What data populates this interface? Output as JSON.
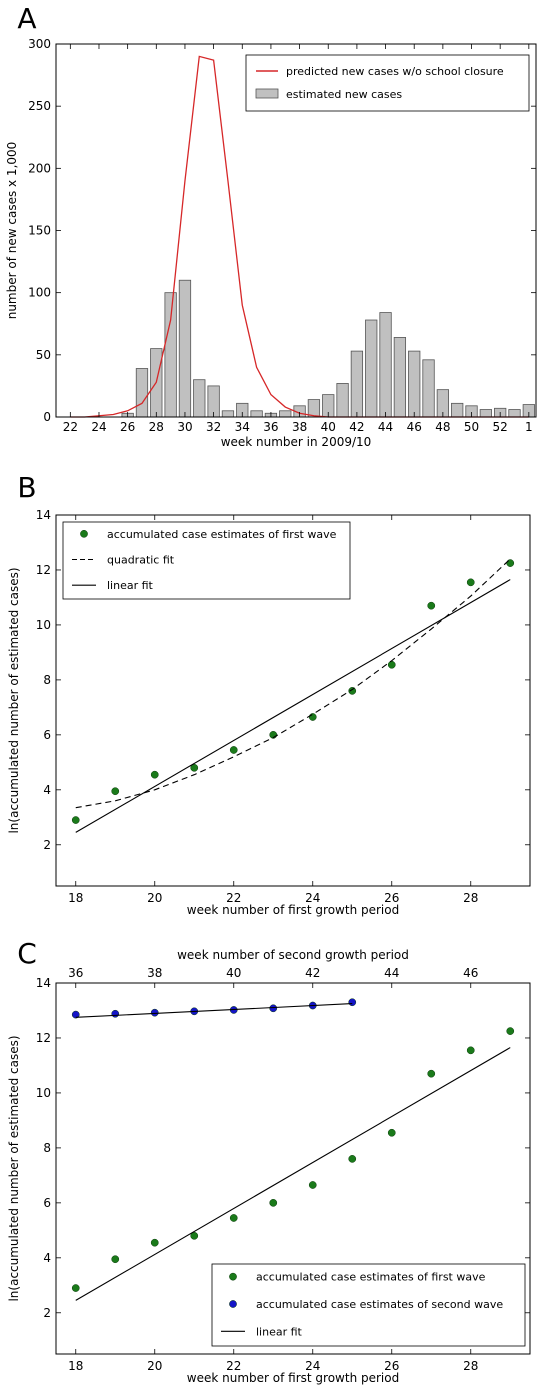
{
  "chart_data": [
    {
      "panel_label": "A",
      "type": "bar",
      "xlabel": "week number in 2009/10",
      "ylabel": "number of new cases x 1,000",
      "ylim": [
        0,
        300
      ],
      "yticks": [
        0,
        50,
        100,
        150,
        200,
        250,
        300
      ],
      "xtick_labels": [
        "22",
        "24",
        "26",
        "28",
        "30",
        "32",
        "34",
        "36",
        "38",
        "40",
        "42",
        "44",
        "46",
        "48",
        "50",
        "52",
        "1"
      ],
      "categories": [
        "22",
        "23",
        "24",
        "25",
        "26",
        "27",
        "28",
        "29",
        "30",
        "31",
        "32",
        "33",
        "34",
        "35",
        "36",
        "37",
        "38",
        "39",
        "40",
        "41",
        "42",
        "43",
        "44",
        "45",
        "46",
        "47",
        "48",
        "49",
        "50",
        "51",
        "52",
        "53",
        "1"
      ],
      "legend_position": "upper right",
      "series": [
        {
          "name": "predicted new cases w/o school closure",
          "kind": "line",
          "color": "#d62728",
          "values": [
            0,
            0,
            1,
            2,
            5,
            11,
            28,
            78,
            190,
            290,
            287,
            190,
            90,
            40,
            18,
            8,
            3,
            1,
            0,
            0,
            0,
            0,
            0,
            0,
            0,
            0,
            0,
            0,
            0,
            0,
            0,
            0,
            0
          ]
        },
        {
          "name": "estimated new cases",
          "kind": "bar",
          "color": "#c0c0c0",
          "values": [
            0,
            0,
            0,
            0,
            3,
            39,
            55,
            100,
            110,
            30,
            25,
            5,
            11,
            5,
            3,
            5,
            9,
            14,
            18,
            27,
            53,
            78,
            84,
            64,
            53,
            46,
            22,
            11,
            9,
            6,
            7,
            6,
            10
          ]
        }
      ]
    },
    {
      "panel_label": "B",
      "type": "scatter",
      "xlabel": "week number of first growth period",
      "ylabel": "ln(accumulated number of estimated cases)",
      "xlim": [
        17.5,
        29.5
      ],
      "ylim": [
        0.5,
        14
      ],
      "xticks": [
        18,
        20,
        22,
        24,
        26,
        28
      ],
      "yticks": [
        2,
        4,
        6,
        8,
        10,
        12,
        14
      ],
      "legend_position": "upper left",
      "series": [
        {
          "name": "accumulated case estimates of first wave",
          "kind": "points",
          "color": "#1a7a1a",
          "x": [
            18,
            19,
            20,
            21,
            22,
            23,
            24,
            25,
            26,
            27,
            28,
            29
          ],
          "y": [
            2.9,
            3.95,
            4.55,
            4.8,
            5.45,
            6.0,
            6.65,
            7.6,
            8.55,
            10.7,
            11.55,
            12.25
          ]
        },
        {
          "name": "quadratic fit",
          "kind": "dashed-line",
          "color": "#000000",
          "x": [
            18,
            19,
            20,
            21,
            22,
            23,
            24,
            25,
            26,
            27,
            28,
            29
          ],
          "y": [
            3.35,
            3.6,
            4.0,
            4.55,
            5.2,
            5.9,
            6.75,
            7.65,
            8.7,
            9.85,
            11.05,
            12.4
          ]
        },
        {
          "name": "linear fit",
          "kind": "line",
          "color": "#000000",
          "x": [
            18,
            29
          ],
          "y": [
            2.45,
            11.65
          ]
        }
      ]
    },
    {
      "panel_label": "C",
      "type": "scatter",
      "xlabel": "week number of first growth period",
      "x2label": "week number of second growth period",
      "ylabel": "ln(accumulated number of estimated cases)",
      "xlim": [
        17.5,
        29.5
      ],
      "x2lim": [
        35.5,
        47.5
      ],
      "ylim": [
        0.5,
        14
      ],
      "xticks": [
        18,
        20,
        22,
        24,
        26,
        28
      ],
      "x2ticks": [
        36,
        38,
        40,
        42,
        44,
        46
      ],
      "yticks": [
        2,
        4,
        6,
        8,
        10,
        12,
        14
      ],
      "legend_position": "lower right",
      "series": [
        {
          "name": "accumulated case estimates of first wave",
          "kind": "points",
          "axis": "bottom",
          "color": "#1a7a1a",
          "x": [
            18,
            19,
            20,
            21,
            22,
            23,
            24,
            25,
            26,
            27,
            28,
            29
          ],
          "y": [
            2.9,
            3.95,
            4.55,
            4.8,
            5.45,
            6.0,
            6.65,
            7.6,
            8.55,
            10.7,
            11.55,
            12.25
          ]
        },
        {
          "name": "accumulated case estimates of second wave",
          "kind": "points",
          "axis": "top",
          "color": "#1515c8",
          "x": [
            36,
            37,
            38,
            39,
            40,
            41,
            42,
            43
          ],
          "y": [
            12.85,
            12.88,
            12.92,
            12.97,
            13.02,
            13.08,
            13.18,
            13.3
          ]
        },
        {
          "name": "linear fit",
          "kind": "line",
          "axis": "bottom",
          "color": "#000000",
          "x": [
            18,
            29
          ],
          "y": [
            2.45,
            11.65
          ]
        },
        {
          "name": "",
          "kind": "line",
          "axis": "top",
          "color": "#000000",
          "x": [
            36,
            43
          ],
          "y": [
            12.75,
            13.25
          ]
        }
      ]
    }
  ]
}
